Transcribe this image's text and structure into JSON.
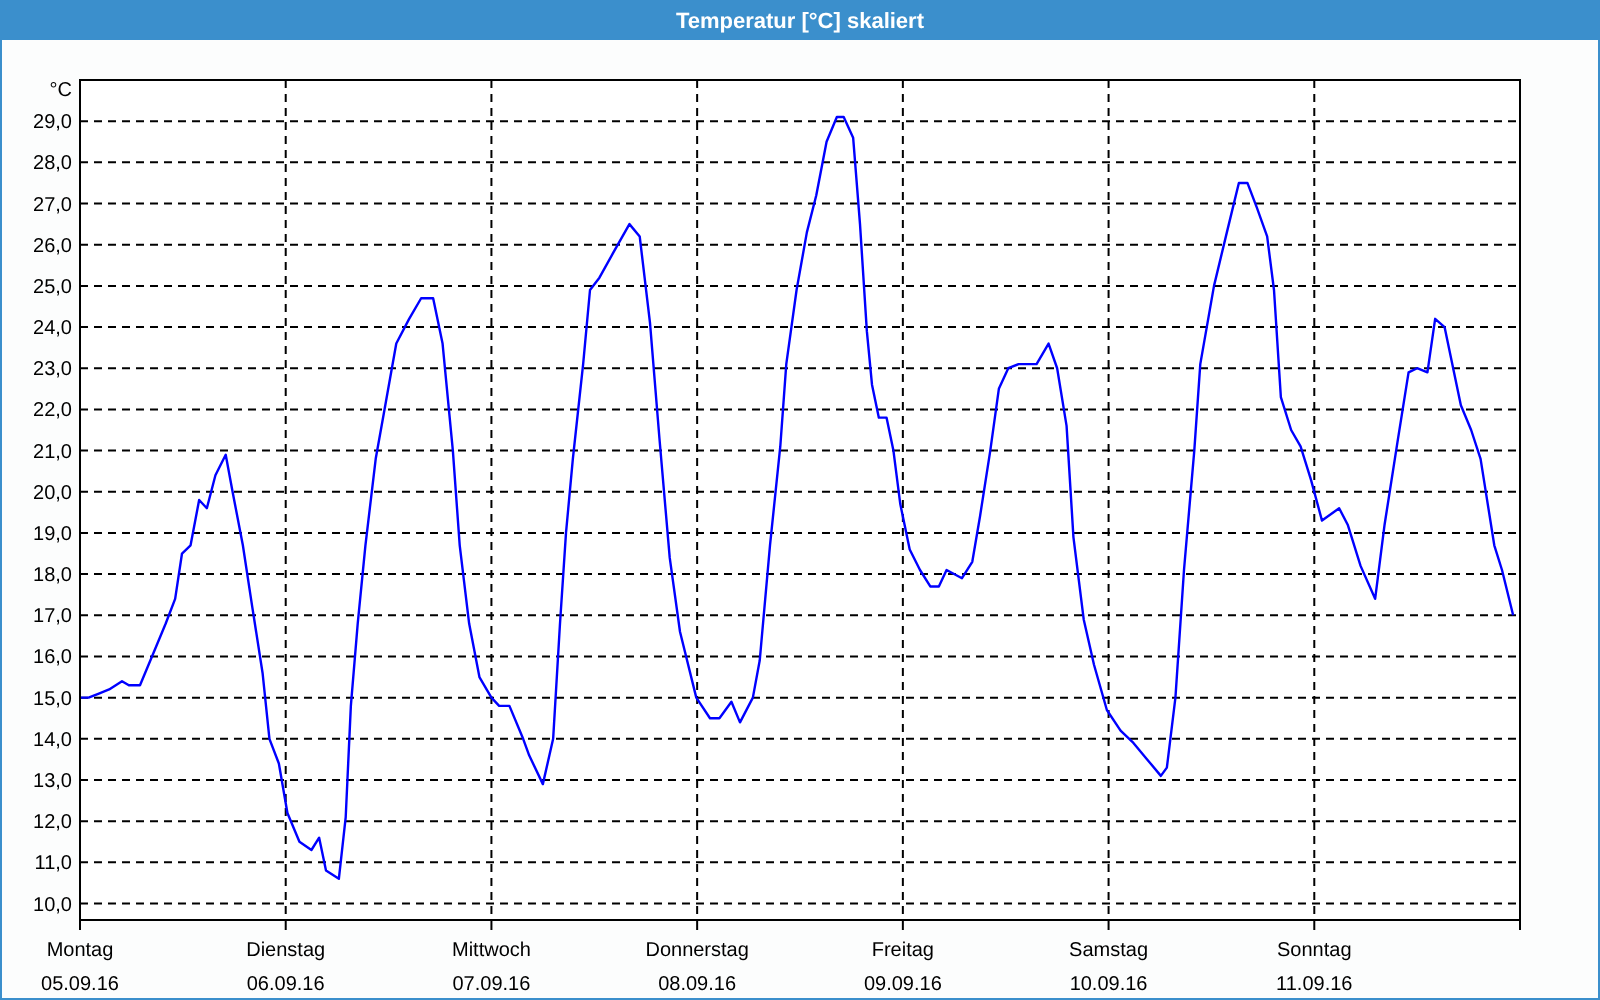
{
  "chart_data": {
    "type": "line",
    "title": "Temperatur [°C] skaliert",
    "ylabel": "°C",
    "x": [
      "--09-05T00:00",
      "--09-05T01:00",
      "--09-05T02:12",
      "--09-05T03:24",
      "--09-05T04:54",
      "--09-05T05:42",
      "--09-05T07:00",
      "--09-05T08:24",
      "--09-05T10:00",
      "--09-05T11:06",
      "--09-05T11:54",
      "--09-05T12:54",
      "--09-05T13:54",
      "--09-05T14:48",
      "--09-05T15:48",
      "--09-05T17:00",
      "--09-05T17:48",
      "--09-05T19:00",
      "--09-05T20:06",
      "--09-05T21:18",
      "--09-05T22:06",
      "--09-05T23:12",
      "--09-06T00:12",
      "--09-06T01:36",
      "--09-06T03:00",
      "--09-06T03:54",
      "--09-06T04:42",
      "--09-06T06:12",
      "--09-06T07:00",
      "--09-06T07:36",
      "--09-06T08:24",
      "--09-06T09:18",
      "--09-06T10:30",
      "--09-06T11:42",
      "--09-06T12:54",
      "--09-06T14:24",
      "--09-06T15:48",
      "--09-06T17:12",
      "--09-06T18:18",
      "--09-06T19:30",
      "--09-06T20:18",
      "--09-06T21:24",
      "--09-06T22:36",
      "--09-07T00:00",
      "--09-07T00:54",
      "--09-07T02:06",
      "--09-07T03:42",
      "--09-07T04:24",
      "--09-07T06:00",
      "--09-07T07:12",
      "--09-07T08:00",
      "--09-07T08:42",
      "--09-07T09:30",
      "--09-07T10:42",
      "--09-07T11:30",
      "--09-07T12:36",
      "--09-07T14:12",
      "--09-07T16:06",
      "--09-07T17:18",
      "--09-07T18:30",
      "--09-07T19:36",
      "--09-07T20:48",
      "--09-07T22:00",
      "--09-07T23:54",
      "--09-08T01:30",
      "--09-08T02:36",
      "--09-08T04:00",
      "--09-08T05:00",
      "--09-08T06:30",
      "--09-08T07:18",
      "--09-08T08:30",
      "--09-08T09:42",
      "--09-08T10:24",
      "--09-08T11:36",
      "--09-08T12:48",
      "--09-08T13:54",
      "--09-08T15:06",
      "--09-08T16:18",
      "--09-08T17:06",
      "--09-08T18:12",
      "--09-08T19:00",
      "--09-08T19:48",
      "--09-08T20:24",
      "--09-08T21:12",
      "--09-08T22:06",
      "--09-08T22:54",
      "--09-08T23:42",
      "--09-09T00:48",
      "--09-09T02:00",
      "--09-09T03:12",
      "--09-09T04:12",
      "--09-09T05:06",
      "--09-09T06:54",
      "--09-09T08:06",
      "--09-09T09:00",
      "--09-09T10:12",
      "--09-09T11:12",
      "--09-09T12:18",
      "--09-09T13:30",
      "--09-09T14:06",
      "--09-09T15:36",
      "--09-09T17:00",
      "--09-09T18:00",
      "--09-09T19:06",
      "--09-09T19:54",
      "--09-09T21:06",
      "--09-09T22:18",
      "--09-09T23:48",
      "--09-10T01:24",
      "--09-10T02:54",
      "--09-10T04:30",
      "--09-10T06:06",
      "--09-10T06:48",
      "--09-10T07:48",
      "--09-10T08:48",
      "--09-10T10:00",
      "--09-10T10:42",
      "--09-10T12:18",
      "--09-10T13:48",
      "--09-10T15:12",
      "--09-10T16:12",
      "--09-10T17:18",
      "--09-10T18:30",
      "--09-10T19:18",
      "--09-10T20:06",
      "--09-10T21:18",
      "--09-10T22:24",
      "--09-10T23:36",
      "--09-11T00:54",
      "--09-11T02:54",
      "--09-11T03:54",
      "--09-11T05:24",
      "--09-11T07:06",
      "--09-11T08:12",
      "--09-11T09:42",
      "--09-11T11:00",
      "--09-11T12:00",
      "--09-11T13:12",
      "--09-11T14:06",
      "--09-11T15:12",
      "--09-11T17:06",
      "--09-11T18:18",
      "--09-11T19:24",
      "--09-11T21:00",
      "--09-11T21:54",
      "--09-11T23:12"
    ],
    "series": [
      {
        "color": "#0000ff",
        "values": [
          15.0,
          15.0,
          15.1,
          15.2,
          15.4,
          15.3,
          15.3,
          16.0,
          16.8,
          17.4,
          18.5,
          18.7,
          19.8,
          19.6,
          20.4,
          20.9,
          20.0,
          18.7,
          17.2,
          15.6,
          14.0,
          13.4,
          12.2,
          11.5,
          11.3,
          11.6,
          10.8,
          10.6,
          12.1,
          14.8,
          16.8,
          18.7,
          20.8,
          22.2,
          23.6,
          24.2,
          24.7,
          24.7,
          23.6,
          21.0,
          18.7,
          16.8,
          15.5,
          15.0,
          14.8,
          14.8,
          14.0,
          13.6,
          12.9,
          14.0,
          16.8,
          19.0,
          20.8,
          23.1,
          24.9,
          25.2,
          25.8,
          26.5,
          26.2,
          24.1,
          21.3,
          18.4,
          16.6,
          15.0,
          14.5,
          14.5,
          14.9,
          14.4,
          15.0,
          15.9,
          18.7,
          21.1,
          23.1,
          24.9,
          26.3,
          27.2,
          28.5,
          29.1,
          29.1,
          28.6,
          26.5,
          23.9,
          22.6,
          21.8,
          21.8,
          21.0,
          19.7,
          18.6,
          18.1,
          17.7,
          17.7,
          18.1,
          17.9,
          18.3,
          19.4,
          21.0,
          22.5,
          23.0,
          23.1,
          23.1,
          23.1,
          23.6,
          23.0,
          21.6,
          18.9,
          16.9,
          15.8,
          14.7,
          14.2,
          13.9,
          13.5,
          13.1,
          13.3,
          15.0,
          18.1,
          21.0,
          23.1,
          25.0,
          26.3,
          27.5,
          27.5,
          26.9,
          26.2,
          24.9,
          22.3,
          21.5,
          21.1,
          20.3,
          19.3,
          19.6,
          19.2,
          18.2,
          17.4,
          19.2,
          21.2,
          22.9,
          23.0,
          22.9,
          24.2,
          24.0,
          22.1,
          21.5,
          20.8,
          18.7,
          18.1,
          17.0
        ]
      }
    ],
    "xlim": [
      "--09-05",
      "--09-12"
    ],
    "xticks": [
      {
        "value": "--09-05",
        "label": "Montag\n05.09.16"
      },
      {
        "value": "--09-06",
        "label": "Dienstag\n06.09.16"
      },
      {
        "value": "--09-07",
        "label": "Mittwoch\n07.09.16"
      },
      {
        "value": "--09-08",
        "label": "Donnerstag\n08.09.16"
      },
      {
        "value": "--09-09",
        "label": "Freitag\n09.09.16"
      },
      {
        "value": "--09-10",
        "label": "Samstag\n10.09.16"
      },
      {
        "value": "--09-11",
        "label": "Sonntag\n11.09.16"
      },
      {
        "value": "--09-12",
        "label": null
      }
    ],
    "ylim": [
      9.6,
      30
    ],
    "yticks": [
      {
        "value": 10,
        "label": "10,0"
      },
      {
        "value": 11,
        "label": "11,0"
      },
      {
        "value": 12,
        "label": "12,0"
      },
      {
        "value": 13,
        "label": "13,0"
      },
      {
        "value": 14,
        "label": "14,0"
      },
      {
        "value": 15,
        "label": "15,0"
      },
      {
        "value": 16,
        "label": "16,0"
      },
      {
        "value": 17,
        "label": "17,0"
      },
      {
        "value": 18,
        "label": "18,0"
      },
      {
        "value": 19,
        "label": "19,0"
      },
      {
        "value": 20,
        "label": "20,0"
      },
      {
        "value": 21,
        "label": "21,0"
      },
      {
        "value": 22,
        "label": "22,0"
      },
      {
        "value": 23,
        "label": "23,0"
      },
      {
        "value": 24,
        "label": "24,0"
      },
      {
        "value": 25,
        "label": "25,0"
      },
      {
        "value": 26,
        "label": "26,0"
      },
      {
        "value": 27,
        "label": "27,0"
      },
      {
        "value": 28,
        "label": "28,0"
      },
      {
        "value": 29,
        "label": "29,0"
      }
    ],
    "grid": true,
    "marker": "none",
    "line_style": "solid"
  }
}
